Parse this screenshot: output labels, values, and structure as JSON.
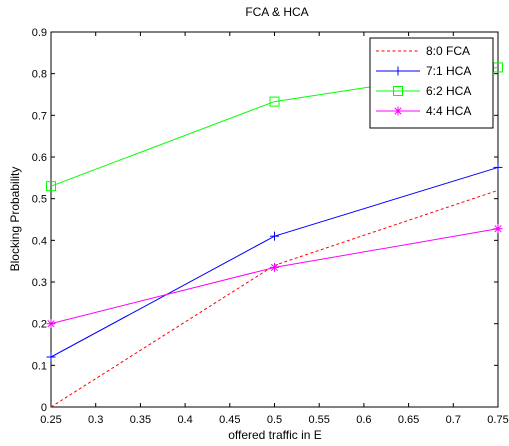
{
  "chart_data": {
    "type": "line",
    "title": "FCA & HCA",
    "xlabel": "offered traffic in E",
    "ylabel": "Blocking Probability",
    "xlim": [
      0.25,
      0.75
    ],
    "ylim": [
      0,
      0.9
    ],
    "x_ticks": [
      "0.25",
      "0.3",
      "0.35",
      "0.4",
      "0.45",
      "0.5",
      "0.55",
      "0.6",
      "0.65",
      "0.7",
      "0.75"
    ],
    "y_ticks": [
      "0",
      "0.1",
      "0.2",
      "0.3",
      "0.4",
      "0.5",
      "0.6",
      "0.7",
      "0.8",
      "0.9"
    ],
    "grid": false,
    "legend_position": "top-right",
    "x": [
      0.25,
      0.5,
      0.75
    ],
    "series": [
      {
        "name": "8:0 FCA",
        "values": [
          0.0,
          0.34,
          0.52
        ],
        "color": "#ff0000",
        "line_style": "dotted",
        "marker": "none"
      },
      {
        "name": "7:1 HCA",
        "values": [
          0.12,
          0.41,
          0.575
        ],
        "color": "#0000ff",
        "line_style": "solid",
        "marker": "plus"
      },
      {
        "name": "6:2 HCA",
        "values": [
          0.53,
          0.733,
          0.815
        ],
        "color": "#00ff00",
        "line_style": "solid",
        "marker": "square"
      },
      {
        "name": "4:4 HCA",
        "values": [
          0.2,
          0.335,
          0.428
        ],
        "color": "#ff00ff",
        "line_style": "solid",
        "marker": "star"
      }
    ]
  }
}
